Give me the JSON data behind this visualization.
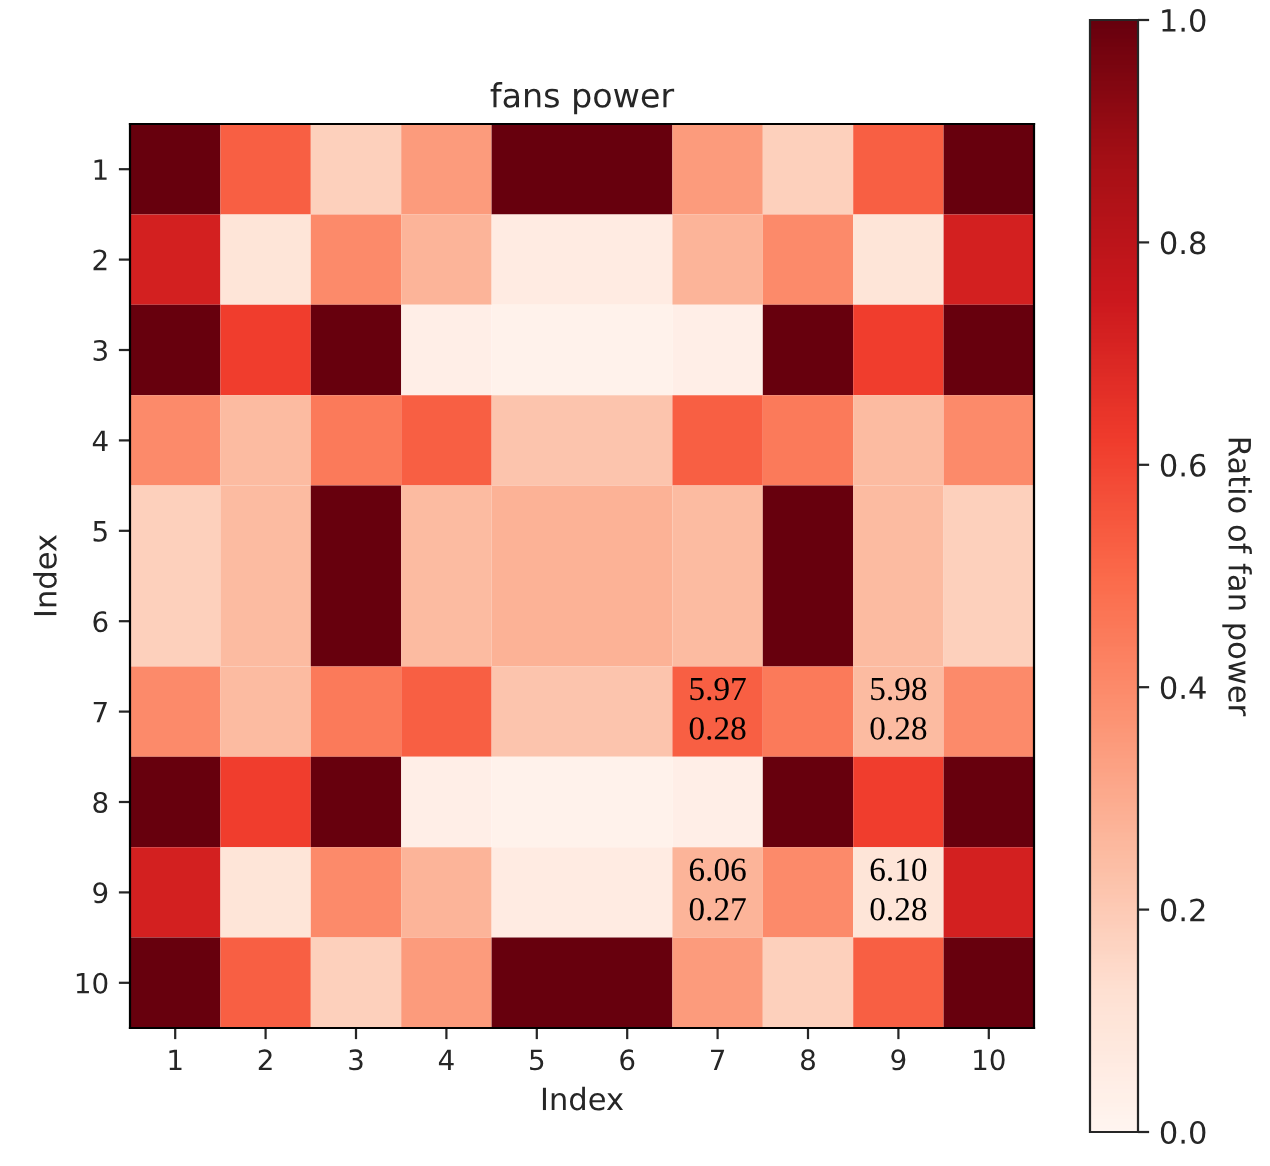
{
  "chart_data": {
    "type": "heatmap",
    "title": "fans power",
    "xlabel": "Index",
    "ylabel": "Index",
    "clabel": "Ratio of fan power",
    "categories": [
      "1",
      "2",
      "3",
      "4",
      "5",
      "6",
      "7",
      "8",
      "9",
      "10"
    ],
    "y_categories": [
      "1",
      "2",
      "3",
      "4",
      "5",
      "6",
      "7",
      "8",
      "9",
      "10"
    ],
    "cells": [
      [
        1.0,
        0.53,
        0.18,
        0.35,
        1.0,
        1.0,
        0.35,
        0.18,
        0.53,
        1.0
      ],
      [
        0.72,
        0.1,
        0.4,
        0.27,
        0.06,
        0.06,
        0.27,
        0.4,
        0.1,
        0.72
      ],
      [
        1.0,
        0.62,
        1.0,
        0.04,
        0.02,
        0.02,
        0.04,
        1.0,
        0.62,
        1.0
      ],
      [
        0.4,
        0.25,
        0.45,
        0.53,
        0.22,
        0.22,
        0.53,
        0.45,
        0.25,
        0.4
      ],
      [
        0.18,
        0.25,
        1.0,
        0.25,
        0.28,
        0.28,
        0.25,
        1.0,
        0.25,
        0.18
      ],
      [
        0.18,
        0.25,
        1.0,
        0.25,
        0.28,
        0.28,
        0.25,
        1.0,
        0.25,
        0.18
      ],
      [
        0.4,
        0.25,
        0.45,
        0.53,
        0.22,
        0.22,
        0.53,
        0.45,
        0.25,
        0.4
      ],
      [
        1.0,
        0.62,
        1.0,
        0.04,
        0.02,
        0.02,
        0.04,
        1.0,
        0.62,
        1.0
      ],
      [
        0.72,
        0.1,
        0.4,
        0.27,
        0.06,
        0.06,
        0.27,
        0.4,
        0.1,
        0.72
      ],
      [
        1.0,
        0.53,
        0.18,
        0.35,
        1.0,
        1.0,
        0.35,
        0.18,
        0.53,
        1.0
      ]
    ],
    "cell_labels": [
      [
        null,
        null,
        null,
        null,
        null,
        null,
        null,
        null,
        null,
        null
      ],
      [
        null,
        null,
        null,
        null,
        null,
        null,
        null,
        null,
        null,
        null
      ],
      [
        null,
        null,
        null,
        null,
        null,
        null,
        null,
        null,
        null,
        null
      ],
      [
        null,
        null,
        null,
        null,
        null,
        null,
        null,
        null,
        null,
        null
      ],
      [
        null,
        null,
        null,
        null,
        null,
        null,
        null,
        null,
        null,
        null
      ],
      [
        null,
        null,
        null,
        null,
        null,
        null,
        null,
        null,
        null,
        null
      ],
      [
        null,
        null,
        null,
        null,
        null,
        null,
        "5.97\n0.28",
        null,
        "5.98\n0.28",
        null
      ],
      [
        null,
        null,
        null,
        null,
        null,
        null,
        null,
        null,
        null,
        null
      ],
      [
        null,
        null,
        null,
        null,
        null,
        null,
        "6.06\n0.27",
        null,
        "6.10\n0.28",
        null
      ],
      [
        null,
        null,
        null,
        null,
        null,
        null,
        null,
        null,
        null,
        null
      ]
    ],
    "clim": [
      0,
      1
    ],
    "cticks": [
      {
        "value": 0,
        "label": "0.0"
      },
      0.2,
      0.4,
      0.6,
      0.8,
      {
        "value": 1,
        "label": "1.0"
      }
    ],
    "grid": false
  }
}
